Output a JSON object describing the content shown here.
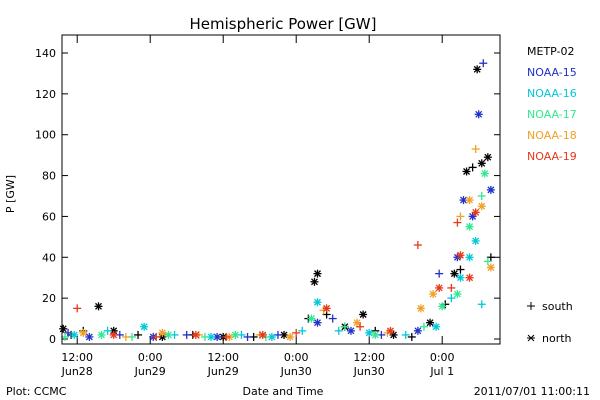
{
  "chart_data": {
    "type": "scatter",
    "title": "Hemispheric Power [GW]",
    "xlabel": "Date and Time",
    "ylabel": "P [GW]",
    "ylim": [
      0,
      150
    ],
    "xlim": [
      "2011-06-28 09:30",
      "2011-07-01 09:30"
    ],
    "yticks": [
      0,
      20,
      40,
      60,
      80,
      100,
      120,
      140
    ],
    "xticks": [
      {
        "time": "2011-06-28 12:00",
        "line1": "12:00",
        "line2": "Jun28"
      },
      {
        "time": "2011-06-29 00:00",
        "line1": "0:00",
        "line2": "Jun29"
      },
      {
        "time": "2011-06-29 12:00",
        "line1": "12:00",
        "line2": "Jun29"
      },
      {
        "time": "2011-06-30 00:00",
        "line1": "0:00",
        "line2": "Jun30"
      },
      {
        "time": "2011-06-30 12:00",
        "line1": "12:00",
        "line2": "Jun30"
      },
      {
        "time": "2011-07-01 00:00",
        "line1": "0:00",
        "line2": "Jul 1"
      }
    ],
    "legend": {
      "placement": "right",
      "hemispheres": [
        {
          "symbol": "+",
          "label": "south"
        },
        {
          "symbol": "*",
          "label": "north"
        }
      ]
    },
    "series": [
      {
        "name": "METP-02",
        "color": "#000000",
        "points": [
          {
            "t": "2011-06-28 09:42",
            "p": 5,
            "h": "north"
          },
          {
            "t": "2011-06-28 11:00",
            "p": 2,
            "h": "south"
          },
          {
            "t": "2011-06-28 13:00",
            "p": 4,
            "h": "south"
          },
          {
            "t": "2011-06-28 15:30",
            "p": 16,
            "h": "north"
          },
          {
            "t": "2011-06-28 18:00",
            "p": 4,
            "h": "north"
          },
          {
            "t": "2011-06-28 22:00",
            "p": 2,
            "h": "south"
          },
          {
            "t": "2011-06-29 02:00",
            "p": 1,
            "h": "north"
          },
          {
            "t": "2011-06-29 07:00",
            "p": 2,
            "h": "south"
          },
          {
            "t": "2011-06-29 12:00",
            "p": 1,
            "h": "north"
          },
          {
            "t": "2011-06-29 17:00",
            "p": 1,
            "h": "south"
          },
          {
            "t": "2011-06-29 22:00",
            "p": 2,
            "h": "north"
          },
          {
            "t": "2011-06-30 02:00",
            "p": 10,
            "h": "south"
          },
          {
            "t": "2011-06-30 03:00",
            "p": 28,
            "h": "north"
          },
          {
            "t": "2011-06-30 03:30",
            "p": 32,
            "h": "north"
          },
          {
            "t": "2011-06-30 05:00",
            "p": 12,
            "h": "south"
          },
          {
            "t": "2011-06-30 08:00",
            "p": 6,
            "h": "north"
          },
          {
            "t": "2011-06-30 11:00",
            "p": 12,
            "h": "north"
          },
          {
            "t": "2011-06-30 13:00",
            "p": 4,
            "h": "south"
          },
          {
            "t": "2011-06-30 16:00",
            "p": 2,
            "h": "north"
          },
          {
            "t": "2011-06-30 19:00",
            "p": 1,
            "h": "south"
          },
          {
            "t": "2011-06-30 22:00",
            "p": 8,
            "h": "north"
          },
          {
            "t": "2011-07-01 00:30",
            "p": 17,
            "h": "south"
          },
          {
            "t": "2011-07-01 02:00",
            "p": 32,
            "h": "north"
          },
          {
            "t": "2011-07-01 03:00",
            "p": 34,
            "h": "south"
          },
          {
            "t": "2011-07-01 04:00",
            "p": 82,
            "h": "north"
          },
          {
            "t": "2011-07-01 05:00",
            "p": 84,
            "h": "south"
          },
          {
            "t": "2011-07-01 05:45",
            "p": 132,
            "h": "north"
          },
          {
            "t": "2011-07-01 06:30",
            "p": 86,
            "h": "north"
          },
          {
            "t": "2011-07-01 07:30",
            "p": 89,
            "h": "north"
          },
          {
            "t": "2011-07-01 08:00",
            "p": 40,
            "h": "south"
          }
        ]
      },
      {
        "name": "NOAA-15",
        "color": "#2030c8",
        "points": [
          {
            "t": "2011-06-28 10:30",
            "p": 3,
            "h": "south"
          },
          {
            "t": "2011-06-28 14:00",
            "p": 1,
            "h": "north"
          },
          {
            "t": "2011-06-28 19:00",
            "p": 2,
            "h": "south"
          },
          {
            "t": "2011-06-29 00:30",
            "p": 1,
            "h": "north"
          },
          {
            "t": "2011-06-29 06:00",
            "p": 2,
            "h": "south"
          },
          {
            "t": "2011-06-29 11:00",
            "p": 1,
            "h": "north"
          },
          {
            "t": "2011-06-29 16:00",
            "p": 1,
            "h": "south"
          },
          {
            "t": "2011-06-29 21:00",
            "p": 2,
            "h": "south"
          },
          {
            "t": "2011-06-30 03:30",
            "p": 8,
            "h": "north"
          },
          {
            "t": "2011-06-30 06:00",
            "p": 10,
            "h": "south"
          },
          {
            "t": "2011-06-30 09:00",
            "p": 4,
            "h": "north"
          },
          {
            "t": "2011-06-30 14:00",
            "p": 2,
            "h": "south"
          },
          {
            "t": "2011-06-30 20:00",
            "p": 4,
            "h": "north"
          },
          {
            "t": "2011-06-30 23:30",
            "p": 32,
            "h": "south"
          },
          {
            "t": "2011-07-01 02:30",
            "p": 40,
            "h": "north"
          },
          {
            "t": "2011-07-01 03:30",
            "p": 68,
            "h": "north"
          },
          {
            "t": "2011-07-01 05:00",
            "p": 60,
            "h": "north"
          },
          {
            "t": "2011-07-01 06:00",
            "p": 110,
            "h": "north"
          },
          {
            "t": "2011-07-01 06:45",
            "p": 135,
            "h": "south"
          },
          {
            "t": "2011-07-01 08:00",
            "p": 73,
            "h": "north"
          }
        ]
      },
      {
        "name": "NOAA-16",
        "color": "#00c8d8",
        "points": [
          {
            "t": "2011-06-28 11:30",
            "p": 2,
            "h": "north"
          },
          {
            "t": "2011-06-28 17:00",
            "p": 4,
            "h": "south"
          },
          {
            "t": "2011-06-28 23:00",
            "p": 6,
            "h": "north"
          },
          {
            "t": "2011-06-29 04:00",
            "p": 2,
            "h": "south"
          },
          {
            "t": "2011-06-29 10:00",
            "p": 1,
            "h": "north"
          },
          {
            "t": "2011-06-29 15:00",
            "p": 2,
            "h": "south"
          },
          {
            "t": "2011-06-29 20:00",
            "p": 1,
            "h": "north"
          },
          {
            "t": "2011-06-30 01:00",
            "p": 4,
            "h": "south"
          },
          {
            "t": "2011-06-30 03:30",
            "p": 18,
            "h": "north"
          },
          {
            "t": "2011-06-30 07:00",
            "p": 4,
            "h": "south"
          },
          {
            "t": "2011-06-30 12:00",
            "p": 3,
            "h": "north"
          },
          {
            "t": "2011-06-30 18:00",
            "p": 2,
            "h": "south"
          },
          {
            "t": "2011-06-30 23:00",
            "p": 6,
            "h": "north"
          },
          {
            "t": "2011-07-01 01:30",
            "p": 20,
            "h": "south"
          },
          {
            "t": "2011-07-01 03:00",
            "p": 30,
            "h": "north"
          },
          {
            "t": "2011-07-01 04:30",
            "p": 40,
            "h": "north"
          },
          {
            "t": "2011-07-01 05:30",
            "p": 48,
            "h": "north"
          },
          {
            "t": "2011-07-01 06:30",
            "p": 17,
            "h": "south"
          }
        ]
      },
      {
        "name": "NOAA-17",
        "color": "#30e890",
        "points": [
          {
            "t": "2011-06-28 10:00",
            "p": 1,
            "h": "south"
          },
          {
            "t": "2011-06-28 16:00",
            "p": 2,
            "h": "north"
          },
          {
            "t": "2011-06-28 21:00",
            "p": 1,
            "h": "south"
          },
          {
            "t": "2011-06-29 03:00",
            "p": 2,
            "h": "north"
          },
          {
            "t": "2011-06-29 09:00",
            "p": 1,
            "h": "south"
          },
          {
            "t": "2011-06-29 14:00",
            "p": 2,
            "h": "north"
          },
          {
            "t": "2011-06-29 19:00",
            "p": 1,
            "h": "south"
          },
          {
            "t": "2011-06-30 02:30",
            "p": 10,
            "h": "north"
          },
          {
            "t": "2011-06-30 08:00",
            "p": 6,
            "h": "south"
          },
          {
            "t": "2011-06-30 13:00",
            "p": 2,
            "h": "north"
          },
          {
            "t": "2011-06-30 21:00",
            "p": 6,
            "h": "south"
          },
          {
            "t": "2011-07-01 00:00",
            "p": 16,
            "h": "north"
          },
          {
            "t": "2011-07-01 02:30",
            "p": 22,
            "h": "north"
          },
          {
            "t": "2011-07-01 04:30",
            "p": 55,
            "h": "north"
          },
          {
            "t": "2011-07-01 06:30",
            "p": 70,
            "h": "south"
          },
          {
            "t": "2011-07-01 07:00",
            "p": 81,
            "h": "north"
          },
          {
            "t": "2011-07-01 07:30",
            "p": 38,
            "h": "south"
          }
        ]
      },
      {
        "name": "NOAA-18",
        "color": "#f0a028",
        "points": [
          {
            "t": "2011-06-28 13:00",
            "p": 3,
            "h": "north"
          },
          {
            "t": "2011-06-28 20:00",
            "p": 1,
            "h": "south"
          },
          {
            "t": "2011-06-29 02:00",
            "p": 3,
            "h": "north"
          },
          {
            "t": "2011-06-29 08:00",
            "p": 2,
            "h": "south"
          },
          {
            "t": "2011-06-29 13:00",
            "p": 1,
            "h": "north"
          },
          {
            "t": "2011-06-29 18:00",
            "p": 2,
            "h": "south"
          },
          {
            "t": "2011-06-29 23:00",
            "p": 1,
            "h": "north"
          },
          {
            "t": "2011-06-30 04:30",
            "p": 14,
            "h": "south"
          },
          {
            "t": "2011-06-30 10:00",
            "p": 8,
            "h": "north"
          },
          {
            "t": "2011-06-30 15:00",
            "p": 3,
            "h": "south"
          },
          {
            "t": "2011-06-30 20:30",
            "p": 15,
            "h": "north"
          },
          {
            "t": "2011-06-30 22:30",
            "p": 22,
            "h": "north"
          },
          {
            "t": "2011-07-01 03:00",
            "p": 60,
            "h": "south"
          },
          {
            "t": "2011-07-01 04:30",
            "p": 68,
            "h": "north"
          },
          {
            "t": "2011-07-01 05:30",
            "p": 93,
            "h": "south"
          },
          {
            "t": "2011-07-01 06:30",
            "p": 65,
            "h": "north"
          },
          {
            "t": "2011-07-01 08:00",
            "p": 35,
            "h": "north"
          }
        ]
      },
      {
        "name": "NOAA-19",
        "color": "#e83818",
        "points": [
          {
            "t": "2011-06-28 12:00",
            "p": 15,
            "h": "south"
          },
          {
            "t": "2011-06-28 18:00",
            "p": 2,
            "h": "north"
          },
          {
            "t": "2011-06-29 01:00",
            "p": 1,
            "h": "south"
          },
          {
            "t": "2011-06-29 07:30",
            "p": 2,
            "h": "north"
          },
          {
            "t": "2011-06-29 12:30",
            "p": 1,
            "h": "south"
          },
          {
            "t": "2011-06-29 18:30",
            "p": 2,
            "h": "north"
          },
          {
            "t": "2011-06-30 00:00",
            "p": 3,
            "h": "south"
          },
          {
            "t": "2011-06-30 05:00",
            "p": 15,
            "h": "north"
          },
          {
            "t": "2011-06-30 10:30",
            "p": 6,
            "h": "south"
          },
          {
            "t": "2011-06-30 15:30",
            "p": 4,
            "h": "north"
          },
          {
            "t": "2011-06-30 20:00",
            "p": 46,
            "h": "south"
          },
          {
            "t": "2011-06-30 23:30",
            "p": 25,
            "h": "north"
          },
          {
            "t": "2011-07-01 01:30",
            "p": 25,
            "h": "south"
          },
          {
            "t": "2011-07-01 02:30",
            "p": 57,
            "h": "south"
          },
          {
            "t": "2011-07-01 03:00",
            "p": 41,
            "h": "north"
          },
          {
            "t": "2011-07-01 04:30",
            "p": 30,
            "h": "north"
          },
          {
            "t": "2011-07-01 05:30",
            "p": 62,
            "h": "north"
          }
        ]
      }
    ]
  },
  "footer": {
    "source": "Plot: CCMC",
    "timestamp": "2011/07/01 11:00:11"
  }
}
